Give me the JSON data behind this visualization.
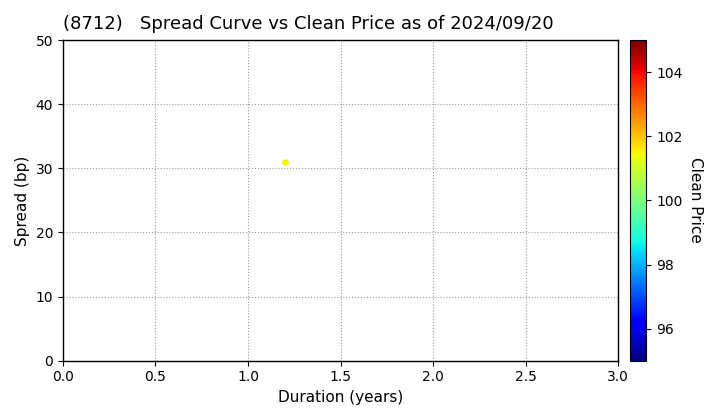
{
  "title": "(8712)   Spread Curve vs Clean Price as of 2024/09/20",
  "xlabel": "Duration (years)",
  "ylabel": "Spread (bp)",
  "colorbar_label": "Clean Price",
  "xlim": [
    0.0,
    3.0
  ],
  "ylim": [
    0,
    50
  ],
  "xticks": [
    0.0,
    0.5,
    1.0,
    1.5,
    2.0,
    2.5,
    3.0
  ],
  "yticks": [
    0,
    10,
    20,
    30,
    40,
    50
  ],
  "colorbar_ticks": [
    96,
    98,
    100,
    102,
    104
  ],
  "colorbar_vmin": 95,
  "colorbar_vmax": 105,
  "data_points": [
    {
      "duration": 1.2,
      "spread": 31,
      "clean_price": 101.5
    }
  ],
  "grid_color": "#999999",
  "bg_color": "#ffffff",
  "title_fontsize": 13,
  "axis_fontsize": 11,
  "tick_fontsize": 10,
  "title_fontweight": "normal"
}
